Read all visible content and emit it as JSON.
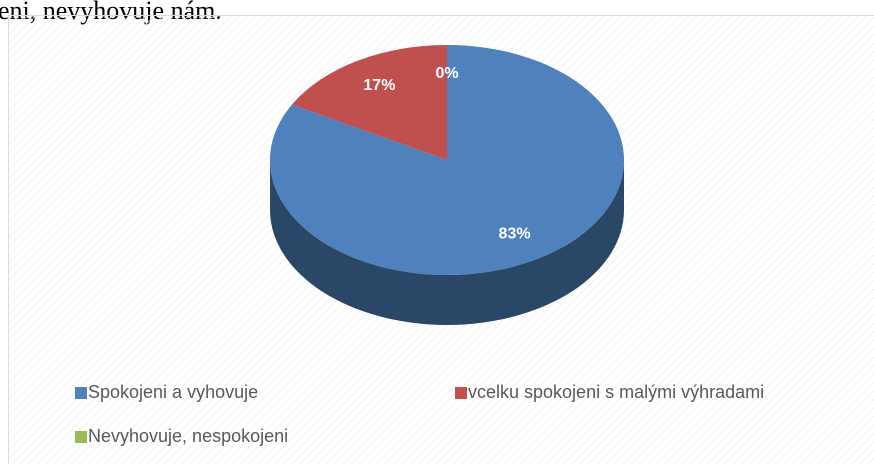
{
  "caption": "eni, nevyhovuje nám.",
  "chart_data": {
    "type": "pie",
    "categories": [
      "Spokojeni a vyhovuje",
      "vcelku spokojeni s malými výhradami",
      "Nevyhovuje, nespokojeni"
    ],
    "values": [
      83,
      17,
      0
    ],
    "value_labels": [
      "83%",
      "17%",
      "0%"
    ],
    "colors": [
      "#4f81bd",
      "#c0504d",
      "#9bbb59"
    ],
    "legend": "bottom"
  }
}
